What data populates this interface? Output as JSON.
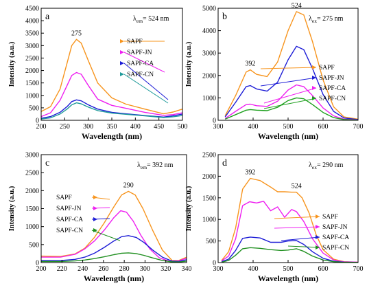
{
  "chart_data": [
    {
      "panel": "a",
      "type": "line",
      "annotation": {
        "main": "λ",
        "sub": "em",
        "rest": "= 524 nm"
      },
      "xlabel": "Wavelength (nm)",
      "ylabel": "Intensity (a.u.)",
      "xlim": [
        200,
        500
      ],
      "ylim": [
        0,
        4500
      ],
      "xticks": [
        "200",
        "250",
        "300",
        "350",
        "400",
        "450",
        "500"
      ],
      "yticks": [
        "0",
        "500",
        "1000",
        "1500",
        "2000",
        "2500",
        "3000",
        "3500",
        "4000",
        "4500"
      ],
      "peak_labels": [
        {
          "text": "275",
          "x": 275,
          "y": 3250
        }
      ],
      "legend_position": "right",
      "series": [
        {
          "name": "SAPF",
          "color": "#f7941d",
          "x": [
            200,
            220,
            240,
            255,
            265,
            275,
            285,
            300,
            320,
            350,
            380,
            420,
            460,
            480,
            500
          ],
          "y": [
            350,
            550,
            1250,
            2300,
            3000,
            3250,
            3100,
            2400,
            1500,
            900,
            650,
            450,
            260,
            330,
            450
          ]
        },
        {
          "name": "SAPF-JN",
          "color": "#ee1ff0",
          "x": [
            200,
            220,
            240,
            255,
            265,
            275,
            285,
            300,
            320,
            350,
            380,
            420,
            460,
            480,
            500
          ],
          "y": [
            150,
            300,
            800,
            1400,
            1800,
            1920,
            1850,
            1400,
            850,
            600,
            480,
            320,
            200,
            230,
            300
          ]
        },
        {
          "name": "SAPF-CA",
          "color": "#1c1cd6",
          "x": [
            200,
            220,
            240,
            255,
            265,
            275,
            285,
            300,
            320,
            350,
            380,
            420,
            460,
            480,
            500
          ],
          "y": [
            80,
            150,
            320,
            550,
            750,
            820,
            780,
            620,
            450,
            320,
            260,
            190,
            130,
            180,
            250
          ]
        },
        {
          "name": "SAPF-CN",
          "color": "#1e9a9a",
          "x": [
            200,
            220,
            240,
            255,
            265,
            275,
            285,
            300,
            320,
            350,
            380,
            420,
            460,
            480,
            500
          ],
          "y": [
            50,
            100,
            250,
            450,
            620,
            700,
            660,
            530,
            390,
            290,
            240,
            180,
            110,
            140,
            190
          ]
        }
      ]
    },
    {
      "panel": "b",
      "type": "line",
      "annotation": {
        "main": "λ",
        "sub": "ex",
        "rest": "= 275 nm"
      },
      "xlabel": "Wavelength (nm)",
      "ylabel": "Intensity (a.u.)",
      "xlim": [
        300,
        700
      ],
      "ylim": [
        0,
        5000
      ],
      "xticks": [
        "300",
        "400",
        "500",
        "600",
        "700"
      ],
      "yticks": [
        "0",
        "1000",
        "2000",
        "3000",
        "4000",
        "5000"
      ],
      "peak_labels": [
        {
          "text": "392",
          "x": 392,
          "y": 2250
        },
        {
          "text": "524",
          "x": 524,
          "y": 4850
        }
      ],
      "legend_position": "right",
      "series": [
        {
          "name": "SAPF",
          "color": "#f7941d",
          "x": [
            320,
            350,
            380,
            392,
            410,
            440,
            470,
            500,
            524,
            545,
            570,
            600,
            630,
            660,
            700
          ],
          "y": [
            200,
            1100,
            2150,
            2250,
            2050,
            1950,
            2600,
            4000,
            4850,
            4700,
            3500,
            1800,
            600,
            150,
            50
          ]
        },
        {
          "name": "SAPF-JN",
          "color": "#1c1cd6",
          "x": [
            320,
            350,
            380,
            392,
            410,
            440,
            470,
            500,
            524,
            545,
            570,
            600,
            630,
            660,
            700
          ],
          "y": [
            150,
            800,
            1500,
            1550,
            1400,
            1300,
            1700,
            2700,
            3300,
            3150,
            2300,
            1150,
            400,
            100,
            30
          ]
        },
        {
          "name": "SAPF-CA",
          "color": "#ee1ff0",
          "x": [
            320,
            350,
            380,
            392,
            410,
            440,
            470,
            500,
            524,
            545,
            570,
            600,
            630,
            660,
            700
          ],
          "y": [
            80,
            400,
            700,
            720,
            650,
            620,
            850,
            1350,
            1580,
            1500,
            1100,
            550,
            200,
            50,
            15
          ]
        },
        {
          "name": "SAPF-CN",
          "color": "#1fa01f",
          "x": [
            320,
            350,
            380,
            392,
            410,
            440,
            470,
            500,
            524,
            545,
            570,
            600,
            630,
            660,
            700
          ],
          "y": [
            50,
            250,
            450,
            480,
            450,
            430,
            580,
            880,
            1000,
            960,
            700,
            350,
            120,
            30,
            10
          ]
        }
      ]
    },
    {
      "panel": "c",
      "type": "line",
      "annotation": {
        "main": "λ",
        "sub": "em",
        "rest": "= 392 nm"
      },
      "xlabel": "Wavelength (nm)",
      "ylabel": "Intensity (a.u.)",
      "xlim": [
        200,
        350
      ],
      "ylim": [
        0,
        3000
      ],
      "xticks": [
        "200",
        "220",
        "240",
        "260",
        "280",
        "300",
        "320",
        "340"
      ],
      "yticks": [
        "0",
        "500",
        "1000",
        "1500",
        "2000",
        "2500",
        "3000"
      ],
      "peak_labels": [
        {
          "text": "290",
          "x": 290,
          "y": 1980
        }
      ],
      "legend_position": "left",
      "series": [
        {
          "name": "SAPF",
          "color": "#f7941d",
          "x": [
            200,
            220,
            235,
            245,
            255,
            265,
            275,
            283,
            290,
            297,
            305,
            315,
            325,
            335,
            342,
            350
          ],
          "y": [
            180,
            170,
            240,
            400,
            700,
            1100,
            1550,
            1880,
            1980,
            1880,
            1500,
            900,
            350,
            60,
            60,
            150
          ]
        },
        {
          "name": "SAPF-JN",
          "color": "#ee1ff0",
          "x": [
            200,
            220,
            235,
            245,
            255,
            265,
            275,
            282,
            288,
            295,
            303,
            312,
            322,
            332,
            342,
            350
          ],
          "y": [
            150,
            150,
            230,
            380,
            600,
            900,
            1250,
            1440,
            1400,
            1150,
            750,
            380,
            130,
            40,
            50,
            120
          ]
        },
        {
          "name": "SAPF-CA",
          "color": "#1c1cd6",
          "x": [
            200,
            220,
            235,
            245,
            255,
            265,
            275,
            283,
            290,
            298,
            306,
            315,
            325,
            335,
            342,
            350
          ],
          "y": [
            60,
            55,
            90,
            150,
            260,
            420,
            600,
            720,
            750,
            700,
            560,
            350,
            150,
            40,
            30,
            80
          ]
        },
        {
          "name": "SAPF-CN",
          "color": "#1f8f1f",
          "x": [
            200,
            220,
            235,
            245,
            255,
            265,
            275,
            283,
            290,
            298,
            306,
            315,
            325,
            335,
            342,
            350
          ],
          "y": [
            30,
            30,
            45,
            70,
            110,
            160,
            220,
            260,
            270,
            250,
            200,
            130,
            60,
            20,
            15,
            40
          ]
        }
      ]
    },
    {
      "panel": "d",
      "type": "line",
      "annotation": {
        "main": "λ",
        "sub": "ex",
        "rest": "= 290 nm"
      },
      "xlabel": "Wavelength (nm)",
      "ylabel": "Intensity (a.u.)",
      "xlim": [
        300,
        700
      ],
      "ylim": [
        0,
        2500
      ],
      "xticks": [
        "300",
        "400",
        "500",
        "600",
        "700"
      ],
      "yticks": [
        "0",
        "500",
        "1000",
        "1500",
        "2000",
        "2500"
      ],
      "peak_labels": [
        {
          "text": "392",
          "x": 392,
          "y": 1950
        },
        {
          "text": "524",
          "x": 524,
          "y": 1630
        }
      ],
      "legend_position": "right",
      "series": [
        {
          "name": "SAPF",
          "color": "#f7941d",
          "x": [
            310,
            330,
            350,
            370,
            392,
            420,
            450,
            470,
            490,
            510,
            524,
            540,
            560,
            580,
            600,
            630,
            660,
            700
          ],
          "y": [
            50,
            250,
            800,
            1700,
            1950,
            1900,
            1750,
            1640,
            1640,
            1630,
            1630,
            1500,
            1150,
            650,
            300,
            80,
            20,
            10
          ]
        },
        {
          "name": "SAPF-JN",
          "color": "#ee1ff0",
          "x": [
            310,
            330,
            350,
            370,
            390,
            410,
            430,
            450,
            470,
            490,
            510,
            524,
            545,
            570,
            600,
            630,
            660,
            700
          ],
          "y": [
            40,
            150,
            550,
            1320,
            1410,
            1380,
            1420,
            1200,
            1290,
            1050,
            1230,
            1180,
            950,
            550,
            220,
            60,
            15,
            10
          ]
        },
        {
          "name": "SAPF-CA",
          "color": "#1c1cd6",
          "x": [
            310,
            330,
            350,
            370,
            392,
            420,
            450,
            480,
            500,
            524,
            545,
            570,
            600,
            630,
            660,
            700
          ],
          "y": [
            20,
            80,
            280,
            560,
            590,
            570,
            470,
            470,
            500,
            510,
            420,
            250,
            100,
            30,
            10,
            5
          ]
        },
        {
          "name": "SAPF-CN",
          "color": "#1f8f1f",
          "x": [
            310,
            330,
            350,
            370,
            392,
            420,
            450,
            480,
            500,
            524,
            545,
            570,
            600,
            630,
            660,
            700
          ],
          "y": [
            10,
            50,
            170,
            320,
            345,
            330,
            300,
            280,
            290,
            320,
            260,
            150,
            60,
            20,
            5,
            5
          ]
        }
      ]
    }
  ]
}
